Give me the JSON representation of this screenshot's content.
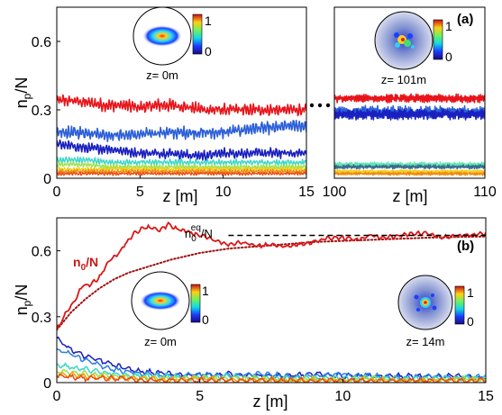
{
  "chart_data": [
    {
      "panel": "a-left",
      "type": "line",
      "xlabel": "z [m]",
      "ylabel": "n_p/N",
      "xlim": [
        0,
        15
      ],
      "ylim": [
        0,
        0.75
      ],
      "xticks": [
        "0",
        "5",
        "10",
        "15"
      ],
      "yticks": [
        "0",
        "0.3",
        "0.6"
      ],
      "inset_label": "z= 0m",
      "colorbar_ticks": [
        "1",
        "0"
      ],
      "series": [
        {
          "color": "#e8141a",
          "mean": [
            0.34,
            0.34,
            0.33,
            0.32,
            0.32,
            0.31,
            0.32,
            0.32,
            0.31,
            0.3,
            0.3,
            0.3,
            0.3,
            0.3,
            0.3,
            0.3
          ],
          "amp": 0.03
        },
        {
          "color": "#2c5fd8",
          "mean": [
            0.2,
            0.2,
            0.2,
            0.19,
            0.19,
            0.19,
            0.2,
            0.2,
            0.2,
            0.2,
            0.2,
            0.21,
            0.22,
            0.22,
            0.23,
            0.23
          ],
          "amp": 0.03
        },
        {
          "color": "#1a20c0",
          "mean": [
            0.15,
            0.14,
            0.13,
            0.13,
            0.12,
            0.11,
            0.11,
            0.11,
            0.1,
            0.1,
            0.11,
            0.11,
            0.11,
            0.11,
            0.11,
            0.11
          ],
          "amp": 0.025
        },
        {
          "color": "#3ad6c8",
          "mean": [
            0.08,
            0.08,
            0.08,
            0.07,
            0.07,
            0.07,
            0.07,
            0.07,
            0.07,
            0.07,
            0.07,
            0.07,
            0.07,
            0.07,
            0.07,
            0.07
          ],
          "amp": 0.015
        },
        {
          "color": "#9be04a",
          "mean": [
            0.06,
            0.06,
            0.06,
            0.05,
            0.05,
            0.05,
            0.05,
            0.05,
            0.05,
            0.05,
            0.05,
            0.05,
            0.05,
            0.05,
            0.05,
            0.05
          ],
          "amp": 0.012
        },
        {
          "color": "#f0d020",
          "mean": [
            0.04,
            0.04,
            0.04,
            0.04,
            0.04,
            0.04,
            0.04,
            0.04,
            0.04,
            0.04,
            0.04,
            0.04,
            0.04,
            0.04,
            0.04,
            0.04
          ],
          "amp": 0.01
        },
        {
          "color": "#f08a10",
          "mean": [
            0.03,
            0.03,
            0.03,
            0.03,
            0.03,
            0.03,
            0.03,
            0.03,
            0.03,
            0.03,
            0.03,
            0.03,
            0.03,
            0.03,
            0.03,
            0.03
          ],
          "amp": 0.01
        },
        {
          "color": "#e84a10",
          "mean": [
            0.02,
            0.02,
            0.02,
            0.02,
            0.02,
            0.02,
            0.02,
            0.02,
            0.02,
            0.02,
            0.02,
            0.02,
            0.02,
            0.02,
            0.02,
            0.02
          ],
          "amp": 0.008
        }
      ]
    },
    {
      "panel": "a-right",
      "type": "line",
      "xlabel": "z [m]",
      "xlim": [
        100,
        110
      ],
      "ylim": [
        0,
        0.75
      ],
      "xticks": [
        "100",
        "110"
      ],
      "panel_label": "(a)",
      "inset_label": "z= 101m",
      "colorbar_ticks": [
        "1",
        "0"
      ],
      "series": [
        {
          "color": "#e8141a",
          "mean": [
            0.35,
            0.35,
            0.35,
            0.35,
            0.35,
            0.35,
            0.35,
            0.35,
            0.35,
            0.35,
            0.35
          ],
          "amp": 0.02
        },
        {
          "color": "#2c5fd8",
          "mean": [
            0.29,
            0.29,
            0.29,
            0.29,
            0.29,
            0.29,
            0.29,
            0.29,
            0.29,
            0.29,
            0.29
          ],
          "amp": 0.03
        },
        {
          "color": "#1a20c0",
          "mean": [
            0.28,
            0.28,
            0.28,
            0.28,
            0.28,
            0.28,
            0.28,
            0.28,
            0.28,
            0.28,
            0.28
          ],
          "amp": 0.025
        },
        {
          "color": "#5ae8b0",
          "mean": [
            0.06,
            0.06,
            0.06,
            0.06,
            0.06,
            0.06,
            0.06,
            0.06,
            0.06,
            0.06,
            0.06
          ],
          "amp": 0.012
        },
        {
          "color": "#3a6a90",
          "mean": [
            0.05,
            0.05,
            0.05,
            0.05,
            0.05,
            0.05,
            0.05,
            0.05,
            0.05,
            0.05,
            0.05
          ],
          "amp": 0.01
        },
        {
          "color": "#f0d020",
          "mean": [
            0.03,
            0.03,
            0.03,
            0.03,
            0.03,
            0.03,
            0.03,
            0.03,
            0.03,
            0.03,
            0.03
          ],
          "amp": 0.008
        },
        {
          "color": "#f08a10",
          "mean": [
            0.02,
            0.02,
            0.02,
            0.02,
            0.02,
            0.02,
            0.02,
            0.02,
            0.02,
            0.02,
            0.02
          ],
          "amp": 0.008
        }
      ]
    },
    {
      "panel": "b",
      "type": "line",
      "xlabel": "z [m]",
      "ylabel": "n_p/N",
      "xlim": [
        0,
        15
      ],
      "ylim": [
        0,
        0.75
      ],
      "xticks": [
        "0",
        "5",
        "10",
        "15"
      ],
      "yticks": [
        "0",
        "0.3",
        "0.6"
      ],
      "panel_label": "(b)",
      "n0_label": "n_0/N",
      "neq_label": "n_0^eq/N",
      "neq_value": 0.67,
      "insets": [
        {
          "label": "z= 0m",
          "colorbar_ticks": [
            "1",
            "0"
          ]
        },
        {
          "label": "z= 14m",
          "colorbar_ticks": [
            "1",
            "0"
          ]
        }
      ],
      "n0_curve": {
        "color": "#d81818",
        "x": [
          0,
          0.3,
          0.6,
          0.9,
          1.2,
          1.5,
          1.8,
          2.1,
          2.4,
          2.7,
          3.0,
          3.3,
          3.6,
          3.9,
          4.2,
          4.5,
          5,
          5.5,
          6,
          6.5,
          7,
          7.5,
          8,
          8.5,
          9,
          9.5,
          10,
          10.5,
          11,
          11.5,
          12,
          12.5,
          13,
          13.5,
          14,
          14.5,
          15
        ],
        "y": [
          0.24,
          0.31,
          0.37,
          0.44,
          0.45,
          0.48,
          0.55,
          0.58,
          0.63,
          0.68,
          0.7,
          0.71,
          0.69,
          0.72,
          0.7,
          0.69,
          0.67,
          0.65,
          0.63,
          0.64,
          0.62,
          0.63,
          0.62,
          0.63,
          0.64,
          0.66,
          0.66,
          0.65,
          0.67,
          0.66,
          0.67,
          0.68,
          0.68,
          0.66,
          0.67,
          0.67,
          0.68
        ]
      },
      "n0_fit": {
        "color": "#a01010",
        "style": "dotted",
        "x": [
          0,
          0.5,
          1,
          1.5,
          2,
          2.5,
          3,
          3.5,
          4,
          5,
          6,
          7,
          8,
          9,
          10,
          11,
          12,
          13,
          14,
          15
        ],
        "y": [
          0.24,
          0.32,
          0.38,
          0.43,
          0.47,
          0.5,
          0.52,
          0.54,
          0.56,
          0.59,
          0.61,
          0.62,
          0.63,
          0.64,
          0.645,
          0.65,
          0.655,
          0.66,
          0.663,
          0.665
        ]
      },
      "modes": [
        {
          "color": "#1a20c0",
          "x": [
            0,
            0.5,
            1,
            1.5,
            2,
            2.5,
            3,
            4,
            5,
            6,
            7,
            8,
            9,
            10,
            11,
            12,
            13,
            14,
            15
          ],
          "y": [
            0.2,
            0.15,
            0.12,
            0.1,
            0.08,
            0.06,
            0.05,
            0.04,
            0.03,
            0.04,
            0.03,
            0.03,
            0.04,
            0.03,
            0.03,
            0.03,
            0.03,
            0.03,
            0.02
          ]
        },
        {
          "color": "#2c7fe0",
          "x": [
            0,
            0.5,
            1,
            1.5,
            2,
            2.5,
            3,
            4,
            5,
            6,
            7,
            8,
            9,
            10,
            11,
            12,
            13,
            14,
            15
          ],
          "y": [
            0.15,
            0.13,
            0.1,
            0.08,
            0.06,
            0.05,
            0.04,
            0.03,
            0.04,
            0.03,
            0.04,
            0.03,
            0.03,
            0.04,
            0.03,
            0.02,
            0.03,
            0.02,
            0.03
          ]
        },
        {
          "color": "#3ad6c8",
          "x": [
            0,
            1,
            2,
            3,
            4,
            5,
            6,
            7,
            8,
            9,
            10,
            11,
            12,
            13,
            14,
            15
          ],
          "y": [
            0.08,
            0.06,
            0.04,
            0.03,
            0.03,
            0.02,
            0.03,
            0.02,
            0.02,
            0.02,
            0.02,
            0.02,
            0.02,
            0.02,
            0.02,
            0.02
          ]
        },
        {
          "color": "#9be04a",
          "x": [
            0,
            1,
            2,
            3,
            4,
            5,
            6,
            7,
            8,
            9,
            10,
            11,
            12,
            13,
            14,
            15
          ],
          "y": [
            0.05,
            0.04,
            0.03,
            0.02,
            0.02,
            0.02,
            0.02,
            0.02,
            0.01,
            0.02,
            0.01,
            0.02,
            0.01,
            0.01,
            0.02,
            0.01
          ]
        },
        {
          "color": "#f0a010",
          "x": [
            0,
            1,
            2,
            3,
            4,
            5,
            6,
            7,
            8,
            9,
            10,
            11,
            12,
            13,
            14,
            15
          ],
          "y": [
            0.04,
            0.03,
            0.02,
            0.02,
            0.01,
            0.02,
            0.01,
            0.01,
            0.01,
            0.01,
            0.01,
            0.01,
            0.01,
            0.01,
            0.01,
            0.01
          ]
        },
        {
          "color": "#e84a10",
          "x": [
            0,
            1,
            2,
            3,
            4,
            5,
            6,
            7,
            8,
            9,
            10,
            11,
            12,
            13,
            14,
            15
          ],
          "y": [
            0.03,
            0.02,
            0.02,
            0.01,
            0.01,
            0.01,
            0.01,
            0.01,
            0.01,
            0.01,
            0.01,
            0.01,
            0.01,
            0.01,
            0.01,
            0.01
          ]
        }
      ]
    }
  ]
}
